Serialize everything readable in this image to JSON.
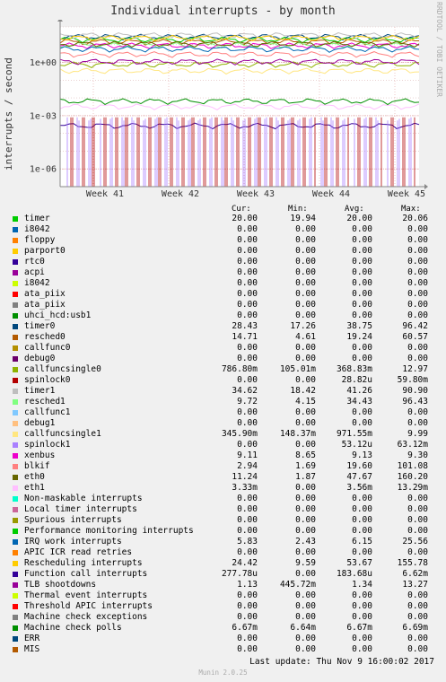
{
  "title": "Individual interrupts - by month",
  "vendor": "RRDTOOL / TOBI OETIKER",
  "chart_data": {
    "type": "line",
    "title": "Individual interrupts - by month",
    "ylabel": "interrupts / second",
    "yscale": "log",
    "ylim": [
      1e-07,
      100
    ],
    "y_ticks": [
      {
        "value": 1,
        "label": "1e+00"
      },
      {
        "value": 0.001,
        "label": "1e-03"
      },
      {
        "value": 1e-06,
        "label": "1e-06"
      }
    ],
    "x_ticks": [
      "Week 41",
      "Week 42",
      "Week 43",
      "Week 44",
      "Week 45"
    ],
    "series": [
      {
        "name": "timer",
        "color": "#00cc00",
        "level": 20
      },
      {
        "name": "i8042",
        "color": "#0066b3",
        "level": 0
      },
      {
        "name": "floppy",
        "color": "#ff8000",
        "level": 0
      },
      {
        "name": "parport0",
        "color": "#ffcc00",
        "level": 0
      },
      {
        "name": "rtc0",
        "color": "#330099",
        "level": 0
      },
      {
        "name": "acpi",
        "color": "#990099",
        "level": 0
      },
      {
        "name": "i8042",
        "color": "#ccff00",
        "level": 0
      },
      {
        "name": "ata_piix",
        "color": "#ff0000",
        "level": 0
      },
      {
        "name": "ata_piix",
        "color": "#808080",
        "level": 0
      },
      {
        "name": "uhci_hcd:usb1",
        "color": "#008f00",
        "level": 0
      },
      {
        "name": "timer0",
        "color": "#00487d",
        "level": 28.43
      },
      {
        "name": "resched0",
        "color": "#b35a00",
        "level": 14.71
      },
      {
        "name": "callfunc0",
        "color": "#b38f00",
        "level": 0
      },
      {
        "name": "debug0",
        "color": "#6b006b",
        "level": 0
      },
      {
        "name": "callfuncsingle0",
        "color": "#8fb300",
        "level": 0.7868
      },
      {
        "name": "spinlock0",
        "color": "#b30000",
        "level": 0
      },
      {
        "name": "timer1",
        "color": "#bebebe",
        "level": 34.62
      },
      {
        "name": "resched1",
        "color": "#80ff80",
        "level": 9.72
      },
      {
        "name": "callfunc1",
        "color": "#80c9ff",
        "level": 0
      },
      {
        "name": "debug1",
        "color": "#ffc080",
        "level": 0
      },
      {
        "name": "callfuncsingle1",
        "color": "#ffe680",
        "level": 0.3459
      },
      {
        "name": "spinlock1",
        "color": "#aa80ff",
        "level": 0
      },
      {
        "name": "xenbus",
        "color": "#ee00cc",
        "level": 9.11
      },
      {
        "name": "blkif",
        "color": "#ff8080",
        "level": 2.94
      },
      {
        "name": "eth0",
        "color": "#666600",
        "level": 11.24
      },
      {
        "name": "eth1",
        "color": "#ffbfff",
        "level": 0.00333
      },
      {
        "name": "Non-maskable interrupts",
        "color": "#00ffcc",
        "level": 0
      },
      {
        "name": "Local timer interrupts",
        "color": "#cc6699",
        "level": 0
      },
      {
        "name": "Spurious interrupts",
        "color": "#999900",
        "level": 0
      },
      {
        "name": "Performance monitoring interrupts",
        "color": "#00cc00",
        "level": 0
      },
      {
        "name": "IRQ work interrupts",
        "color": "#0066b3",
        "level": 5.83
      },
      {
        "name": "APIC ICR read retries",
        "color": "#ff8000",
        "level": 0
      },
      {
        "name": "Rescheduling interrupts",
        "color": "#ffcc00",
        "level": 24.42
      },
      {
        "name": "Function call interrupts",
        "color": "#330099",
        "level": 0.00027778
      },
      {
        "name": "TLB shootdowns",
        "color": "#990099",
        "level": 1.13
      },
      {
        "name": "Thermal event interrupts",
        "color": "#ccff00",
        "level": 0
      },
      {
        "name": "Threshold APIC interrupts",
        "color": "#ff0000",
        "level": 0
      },
      {
        "name": "Machine check exceptions",
        "color": "#808080",
        "level": 0
      },
      {
        "name": "Machine check polls",
        "color": "#008f00",
        "level": 0.00667
      },
      {
        "name": "ERR",
        "color": "#00487d",
        "level": 0
      },
      {
        "name": "MIS",
        "color": "#b35a00",
        "level": 0
      }
    ]
  },
  "legend": {
    "headers": {
      "cur": "Cur:",
      "min": "Min:",
      "avg": "Avg:",
      "max": "Max:"
    },
    "rows": [
      {
        "name": "timer",
        "color": "#00cc00",
        "cur": "20.00",
        "min": "19.94",
        "avg": "20.00",
        "max": "20.06"
      },
      {
        "name": "i8042",
        "color": "#0066b3",
        "cur": "0.00",
        "min": "0.00",
        "avg": "0.00",
        "max": "0.00"
      },
      {
        "name": "floppy",
        "color": "#ff8000",
        "cur": "0.00",
        "min": "0.00",
        "avg": "0.00",
        "max": "0.00"
      },
      {
        "name": "parport0",
        "color": "#ffcc00",
        "cur": "0.00",
        "min": "0.00",
        "avg": "0.00",
        "max": "0.00"
      },
      {
        "name": "rtc0",
        "color": "#330099",
        "cur": "0.00",
        "min": "0.00",
        "avg": "0.00",
        "max": "0.00"
      },
      {
        "name": "acpi",
        "color": "#990099",
        "cur": "0.00",
        "min": "0.00",
        "avg": "0.00",
        "max": "0.00"
      },
      {
        "name": "i8042",
        "color": "#ccff00",
        "cur": "0.00",
        "min": "0.00",
        "avg": "0.00",
        "max": "0.00"
      },
      {
        "name": "ata_piix",
        "color": "#ff0000",
        "cur": "0.00",
        "min": "0.00",
        "avg": "0.00",
        "max": "0.00"
      },
      {
        "name": "ata_piix",
        "color": "#808080",
        "cur": "0.00",
        "min": "0.00",
        "avg": "0.00",
        "max": "0.00"
      },
      {
        "name": "uhci_hcd:usb1",
        "color": "#008f00",
        "cur": "0.00",
        "min": "0.00",
        "avg": "0.00",
        "max": "0.00"
      },
      {
        "name": "timer0",
        "color": "#00487d",
        "cur": "28.43",
        "min": "17.26",
        "avg": "38.75",
        "max": "96.42"
      },
      {
        "name": "resched0",
        "color": "#b35a00",
        "cur": "14.71",
        "min": "4.61",
        "avg": "19.24",
        "max": "60.57"
      },
      {
        "name": "callfunc0",
        "color": "#b38f00",
        "cur": "0.00",
        "min": "0.00",
        "avg": "0.00",
        "max": "0.00"
      },
      {
        "name": "debug0",
        "color": "#6b006b",
        "cur": "0.00",
        "min": "0.00",
        "avg": "0.00",
        "max": "0.00"
      },
      {
        "name": "callfuncsingle0",
        "color": "#8fb300",
        "cur": "786.80m",
        "min": "105.01m",
        "avg": "368.83m",
        "max": "12.97"
      },
      {
        "name": "spinlock0",
        "color": "#b30000",
        "cur": "0.00",
        "min": "0.00",
        "avg": "28.82u",
        "max": "59.80m"
      },
      {
        "name": "timer1",
        "color": "#bebebe",
        "cur": "34.62",
        "min": "18.42",
        "avg": "41.26",
        "max": "90.90"
      },
      {
        "name": "resched1",
        "color": "#80ff80",
        "cur": "9.72",
        "min": "4.15",
        "avg": "34.43",
        "max": "96.43"
      },
      {
        "name": "callfunc1",
        "color": "#80c9ff",
        "cur": "0.00",
        "min": "0.00",
        "avg": "0.00",
        "max": "0.00"
      },
      {
        "name": "debug1",
        "color": "#ffc080",
        "cur": "0.00",
        "min": "0.00",
        "avg": "0.00",
        "max": "0.00"
      },
      {
        "name": "callfuncsingle1",
        "color": "#ffe680",
        "cur": "345.90m",
        "min": "148.37m",
        "avg": "971.55m",
        "max": "9.99"
      },
      {
        "name": "spinlock1",
        "color": "#aa80ff",
        "cur": "0.00",
        "min": "0.00",
        "avg": "53.12u",
        "max": "63.12m"
      },
      {
        "name": "xenbus",
        "color": "#ee00cc",
        "cur": "9.11",
        "min": "8.65",
        "avg": "9.13",
        "max": "9.30"
      },
      {
        "name": "blkif",
        "color": "#ff8080",
        "cur": "2.94",
        "min": "1.69",
        "avg": "19.60",
        "max": "101.08"
      },
      {
        "name": "eth0",
        "color": "#666600",
        "cur": "11.24",
        "min": "1.87",
        "avg": "47.67",
        "max": "160.20"
      },
      {
        "name": "eth1",
        "color": "#ffbfff",
        "cur": "3.33m",
        "min": "0.00",
        "avg": "3.56m",
        "max": "13.29m"
      },
      {
        "name": "Non-maskable interrupts",
        "color": "#00ffcc",
        "cur": "0.00",
        "min": "0.00",
        "avg": "0.00",
        "max": "0.00"
      },
      {
        "name": "Local timer interrupts",
        "color": "#cc6699",
        "cur": "0.00",
        "min": "0.00",
        "avg": "0.00",
        "max": "0.00"
      },
      {
        "name": "Spurious interrupts",
        "color": "#999900",
        "cur": "0.00",
        "min": "0.00",
        "avg": "0.00",
        "max": "0.00"
      },
      {
        "name": "Performance monitoring interrupts",
        "color": "#00cc00",
        "cur": "0.00",
        "min": "0.00",
        "avg": "0.00",
        "max": "0.00"
      },
      {
        "name": "IRQ work interrupts",
        "color": "#0066b3",
        "cur": "5.83",
        "min": "2.43",
        "avg": "6.15",
        "max": "25.56"
      },
      {
        "name": "APIC ICR read retries",
        "color": "#ff8000",
        "cur": "0.00",
        "min": "0.00",
        "avg": "0.00",
        "max": "0.00"
      },
      {
        "name": "Rescheduling interrupts",
        "color": "#ffcc00",
        "cur": "24.42",
        "min": "9.59",
        "avg": "53.67",
        "max": "155.78"
      },
      {
        "name": "Function call interrupts",
        "color": "#330099",
        "cur": "277.78u",
        "min": "0.00",
        "avg": "183.68u",
        "max": "6.62m"
      },
      {
        "name": "TLB shootdowns",
        "color": "#990099",
        "cur": "1.13",
        "min": "445.72m",
        "avg": "1.34",
        "max": "13.27"
      },
      {
        "name": "Thermal event interrupts",
        "color": "#ccff00",
        "cur": "0.00",
        "min": "0.00",
        "avg": "0.00",
        "max": "0.00"
      },
      {
        "name": "Threshold APIC interrupts",
        "color": "#ff0000",
        "cur": "0.00",
        "min": "0.00",
        "avg": "0.00",
        "max": "0.00"
      },
      {
        "name": "Machine check exceptions",
        "color": "#808080",
        "cur": "0.00",
        "min": "0.00",
        "avg": "0.00",
        "max": "0.00"
      },
      {
        "name": "Machine check polls",
        "color": "#008f00",
        "cur": "6.67m",
        "min": "6.64m",
        "avg": "6.67m",
        "max": "6.69m"
      },
      {
        "name": "ERR",
        "color": "#00487d",
        "cur": "0.00",
        "min": "0.00",
        "avg": "0.00",
        "max": "0.00"
      },
      {
        "name": "MIS",
        "color": "#b35a00",
        "cur": "0.00",
        "min": "0.00",
        "avg": "0.00",
        "max": "0.00"
      }
    ]
  },
  "last_update": "Last update:  Thu Nov  9 16:00:02 2017",
  "footer": "Munin 2.0.25"
}
